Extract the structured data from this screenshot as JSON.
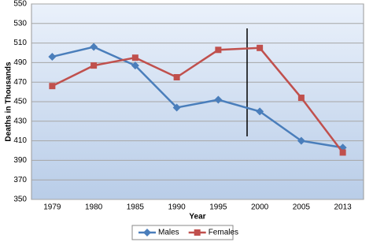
{
  "chart_data": {
    "type": "line",
    "x_label": "Year",
    "y_label": "Deaths in Thousands",
    "categories": [
      "1979",
      "1980",
      "1985",
      "1990",
      "1995",
      "2000",
      "2005",
      "2013"
    ],
    "series": [
      {
        "name": "Males",
        "color": "#4a7ebb",
        "marker": "diamond",
        "values": [
          496,
          506,
          487,
          444,
          452,
          440,
          410,
          403
        ]
      },
      {
        "name": "Females",
        "color": "#c0504d",
        "marker": "square",
        "values": [
          466,
          487,
          495,
          475,
          503,
          505,
          454,
          398
        ]
      }
    ],
    "ylim": [
      350,
      550
    ],
    "yticks": [
      350,
      370,
      390,
      410,
      430,
      450,
      470,
      490,
      510,
      530,
      550
    ],
    "grid": true,
    "legend": "bottom"
  }
}
